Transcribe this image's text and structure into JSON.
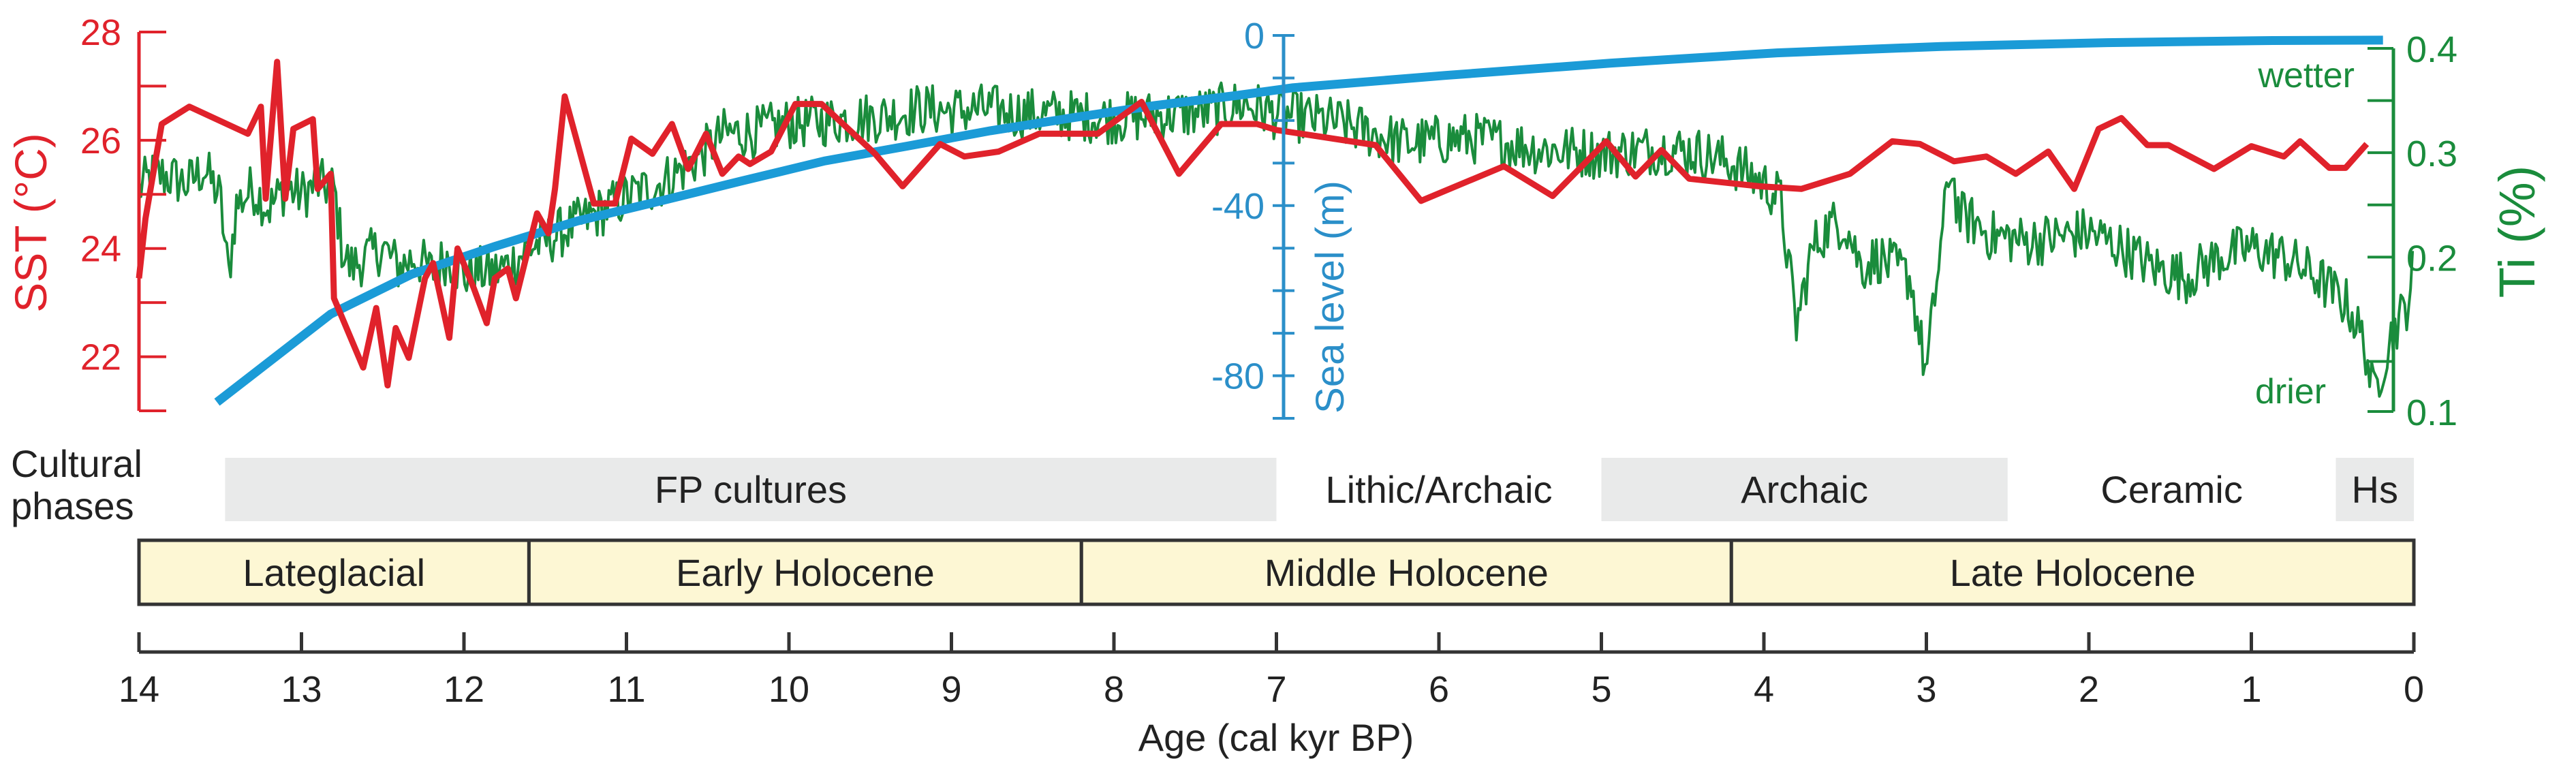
{
  "chart_data": {
    "type": "line",
    "title": "",
    "colors": {
      "sst": "#e0222b",
      "sea": "#1b9bd7",
      "sea_axis": "#2b8fc9",
      "ti": "#1a8c3c",
      "phase_fill": "#e9eaea",
      "period_fill": "#fdf7d4",
      "axis": "#333333"
    },
    "x": {
      "label": "Age (cal kyr BP)",
      "lim": [
        14,
        0
      ],
      "ticks": [
        14,
        13,
        12,
        11,
        10,
        9,
        8,
        7,
        6,
        5,
        4,
        3,
        2,
        1,
        0
      ]
    },
    "axes": {
      "sst": {
        "label": "SST (°C)",
        "lim": [
          21,
          28
        ],
        "ticks": [
          21,
          22,
          23,
          24,
          25,
          26,
          27,
          28
        ],
        "tick_labels": [
          22,
          24,
          26,
          28
        ]
      },
      "sea": {
        "label": "Sea level (m)",
        "lim": [
          -90,
          0
        ],
        "ticks": [
          0,
          -10,
          -20,
          -30,
          -40,
          -50,
          -60,
          -70,
          -80,
          -90
        ],
        "tick_labels": [
          0,
          -40,
          -80
        ]
      },
      "ti": {
        "label": "Ti (%)",
        "lim": [
          0.052,
          0.4
        ],
        "ticks": [
          0.4,
          0.35,
          0.3,
          0.25,
          0.2,
          0.1,
          0.052
        ],
        "tick_labels": [
          0.4,
          0.3,
          0.2
        ],
        "bottom_label": 0.1,
        "top_note": "wetter",
        "bottom_note": "drier"
      }
    },
    "series": [
      {
        "name": "SST",
        "axis": "sst",
        "points": [
          [
            14.0,
            23.45
          ],
          [
            13.96,
            24.55
          ],
          [
            13.86,
            26.3
          ],
          [
            13.69,
            26.62
          ],
          [
            13.33,
            26.12
          ],
          [
            13.25,
            26.62
          ],
          [
            13.22,
            24.92
          ],
          [
            13.15,
            27.45
          ],
          [
            13.1,
            24.92
          ],
          [
            13.05,
            26.21
          ],
          [
            12.93,
            26.39
          ],
          [
            12.9,
            25.1
          ],
          [
            12.82,
            25.38
          ],
          [
            12.8,
            23.08
          ],
          [
            12.62,
            21.8
          ],
          [
            12.54,
            22.9
          ],
          [
            12.47,
            21.47
          ],
          [
            12.42,
            22.53
          ],
          [
            12.34,
            21.98
          ],
          [
            12.24,
            23.45
          ],
          [
            12.19,
            23.73
          ],
          [
            12.09,
            22.35
          ],
          [
            12.04,
            24.0
          ],
          [
            11.94,
            23.27
          ],
          [
            11.86,
            22.62
          ],
          [
            11.81,
            23.45
          ],
          [
            11.73,
            23.63
          ],
          [
            11.68,
            23.08
          ],
          [
            11.55,
            24.65
          ],
          [
            11.48,
            24.28
          ],
          [
            11.44,
            25.1
          ],
          [
            11.38,
            26.81
          ],
          [
            11.2,
            24.83
          ],
          [
            11.07,
            24.83
          ],
          [
            10.97,
            26.03
          ],
          [
            10.84,
            25.75
          ],
          [
            10.72,
            26.3
          ],
          [
            10.62,
            25.47
          ],
          [
            10.51,
            26.12
          ],
          [
            10.41,
            25.38
          ],
          [
            10.31,
            25.7
          ],
          [
            10.24,
            25.56
          ],
          [
            10.11,
            25.79
          ],
          [
            9.96,
            26.67
          ],
          [
            9.8,
            26.67
          ],
          [
            9.47,
            25.75
          ],
          [
            9.3,
            25.15
          ],
          [
            9.07,
            25.93
          ],
          [
            8.92,
            25.7
          ],
          [
            8.71,
            25.79
          ],
          [
            8.46,
            26.12
          ],
          [
            8.1,
            26.12
          ],
          [
            7.83,
            26.71
          ],
          [
            7.6,
            25.38
          ],
          [
            7.34,
            26.3
          ],
          [
            7.12,
            26.3
          ],
          [
            7.0,
            26.19
          ],
          [
            6.39,
            25.91
          ],
          [
            6.11,
            24.88
          ],
          [
            5.6,
            25.52
          ],
          [
            5.3,
            24.97
          ],
          [
            4.97,
            25.98
          ],
          [
            4.79,
            25.33
          ],
          [
            4.63,
            25.82
          ],
          [
            4.46,
            25.29
          ],
          [
            4.03,
            25.15
          ],
          [
            3.77,
            25.1
          ],
          [
            3.47,
            25.38
          ],
          [
            3.21,
            25.98
          ],
          [
            3.04,
            25.93
          ],
          [
            2.83,
            25.61
          ],
          [
            2.63,
            25.7
          ],
          [
            2.45,
            25.38
          ],
          [
            2.25,
            25.79
          ],
          [
            2.09,
            25.1
          ],
          [
            1.94,
            26.21
          ],
          [
            1.8,
            26.41
          ],
          [
            1.64,
            25.91
          ],
          [
            1.51,
            25.91
          ],
          [
            1.23,
            25.47
          ],
          [
            1.0,
            25.89
          ],
          [
            0.8,
            25.7
          ],
          [
            0.7,
            25.98
          ],
          [
            0.52,
            25.49
          ],
          [
            0.42,
            25.49
          ],
          [
            0.29,
            25.93
          ]
        ]
      },
      {
        "name": "Sea level",
        "axis": "sea",
        "points": [
          [
            13.52,
            -86.2
          ],
          [
            12.82,
            -65.5
          ],
          [
            12.32,
            -56.1
          ],
          [
            11.81,
            -49.6
          ],
          [
            11.3,
            -43.6
          ],
          [
            10.79,
            -38.9
          ],
          [
            10.29,
            -34.2
          ],
          [
            9.78,
            -29.5
          ],
          [
            9.27,
            -26.0
          ],
          [
            8.76,
            -22.4
          ],
          [
            8.26,
            -19.4
          ],
          [
            7.75,
            -16.5
          ],
          [
            7.24,
            -14.1
          ],
          [
            6.9,
            -12.3
          ],
          [
            5.96,
            -9.4
          ],
          [
            4.94,
            -6.5
          ],
          [
            3.92,
            -4.1
          ],
          [
            2.91,
            -2.6
          ],
          [
            1.89,
            -1.7
          ],
          [
            0.87,
            -1.2
          ],
          [
            0.19,
            -1.1
          ]
        ]
      },
      {
        "name": "Ti",
        "axis": "ti",
        "points": [
          [
            14.0,
            0.266
          ],
          [
            13.9,
            0.28
          ],
          [
            13.8,
            0.276
          ],
          [
            13.7,
            0.27
          ],
          [
            13.6,
            0.285
          ],
          [
            13.5,
            0.257
          ],
          [
            13.45,
            0.181
          ],
          [
            13.4,
            0.25
          ],
          [
            13.3,
            0.266
          ],
          [
            13.2,
            0.247
          ],
          [
            13.1,
            0.266
          ],
          [
            13.0,
            0.26
          ],
          [
            12.9,
            0.27
          ],
          [
            12.8,
            0.266
          ],
          [
            12.75,
            0.209
          ],
          [
            12.7,
            0.19
          ],
          [
            12.6,
            0.2
          ],
          [
            12.5,
            0.209
          ],
          [
            12.4,
            0.19
          ],
          [
            12.3,
            0.2
          ],
          [
            12.2,
            0.186
          ],
          [
            12.1,
            0.2
          ],
          [
            12.0,
            0.181
          ],
          [
            11.9,
            0.186
          ],
          [
            11.8,
            0.186
          ],
          [
            11.7,
            0.195
          ],
          [
            11.6,
            0.209
          ],
          [
            11.5,
            0.215
          ],
          [
            11.4,
            0.224
          ],
          [
            11.2,
            0.24
          ],
          [
            11.0,
            0.257
          ],
          [
            10.8,
            0.27
          ],
          [
            10.6,
            0.29
          ],
          [
            10.4,
            0.318
          ],
          [
            10.2,
            0.32
          ],
          [
            10.0,
            0.328
          ],
          [
            9.8,
            0.33
          ],
          [
            9.6,
            0.333
          ],
          [
            9.4,
            0.335
          ],
          [
            9.2,
            0.342
          ],
          [
            9.0,
            0.34
          ],
          [
            8.8,
            0.342
          ],
          [
            8.6,
            0.338
          ],
          [
            8.4,
            0.337
          ],
          [
            8.2,
            0.335
          ],
          [
            8.0,
            0.333
          ],
          [
            7.8,
            0.335
          ],
          [
            7.6,
            0.337
          ],
          [
            7.4,
            0.34
          ],
          [
            7.2,
            0.347
          ],
          [
            7.0,
            0.337
          ],
          [
            6.8,
            0.333
          ],
          [
            6.6,
            0.328
          ],
          [
            6.4,
            0.318
          ],
          [
            6.2,
            0.309
          ],
          [
            6.0,
            0.312
          ],
          [
            5.8,
            0.314
          ],
          [
            5.6,
            0.31
          ],
          [
            5.4,
            0.304
          ],
          [
            5.2,
            0.302
          ],
          [
            5.0,
            0.299
          ],
          [
            4.8,
            0.302
          ],
          [
            4.6,
            0.304
          ],
          [
            4.4,
            0.3
          ],
          [
            4.2,
            0.29
          ],
          [
            4.0,
            0.27
          ],
          [
            3.9,
            0.257
          ],
          [
            3.8,
            0.134
          ],
          [
            3.7,
            0.209
          ],
          [
            3.6,
            0.23
          ],
          [
            3.5,
            0.233
          ],
          [
            3.4,
            0.19
          ],
          [
            3.3,
            0.2
          ],
          [
            3.2,
            0.19
          ],
          [
            3.1,
            0.181
          ],
          [
            3.0,
            0.086
          ],
          [
            2.95,
            0.16
          ],
          [
            2.85,
            0.29
          ],
          [
            2.8,
            0.24
          ],
          [
            2.7,
            0.233
          ],
          [
            2.6,
            0.22
          ],
          [
            2.5,
            0.219
          ],
          [
            2.4,
            0.215
          ],
          [
            2.2,
            0.219
          ],
          [
            2.0,
            0.224
          ],
          [
            1.8,
            0.209
          ],
          [
            1.6,
            0.19
          ],
          [
            1.4,
            0.181
          ],
          [
            1.2,
            0.2
          ],
          [
            1.0,
            0.209
          ],
          [
            0.8,
            0.2
          ],
          [
            0.6,
            0.181
          ],
          [
            0.4,
            0.153
          ],
          [
            0.3,
            0.115
          ],
          [
            0.25,
            0.067
          ],
          [
            0.15,
            0.12
          ],
          [
            0.1,
            0.138
          ],
          [
            0.05,
            0.15
          ],
          [
            0.0,
            0.19
          ]
        ]
      }
    ],
    "cultural_phases": {
      "label_line1": "Cultural",
      "label_line2": "phases",
      "items": [
        {
          "label": "FP cultures",
          "start": 13.47,
          "end": 7.0,
          "shaded": true
        },
        {
          "label": "Lithic/Archaic",
          "start": 7.0,
          "end": 5.0,
          "shaded": false
        },
        {
          "label": "Archaic",
          "start": 5.0,
          "end": 2.5,
          "shaded": true
        },
        {
          "label": "Ceramic",
          "start": 2.5,
          "end": 0.48,
          "shaded": false
        },
        {
          "label": "Hs",
          "start": 0.48,
          "end": 0.0,
          "shaded": true
        }
      ]
    },
    "periods": [
      {
        "label": "Lateglacial",
        "start": 14.0,
        "end": 11.6
      },
      {
        "label": "Early Holocene",
        "start": 11.6,
        "end": 8.2
      },
      {
        "label": "Middle Holocene",
        "start": 8.2,
        "end": 4.2
      },
      {
        "label": "Late Holocene",
        "start": 4.2,
        "end": 0.0
      }
    ]
  }
}
